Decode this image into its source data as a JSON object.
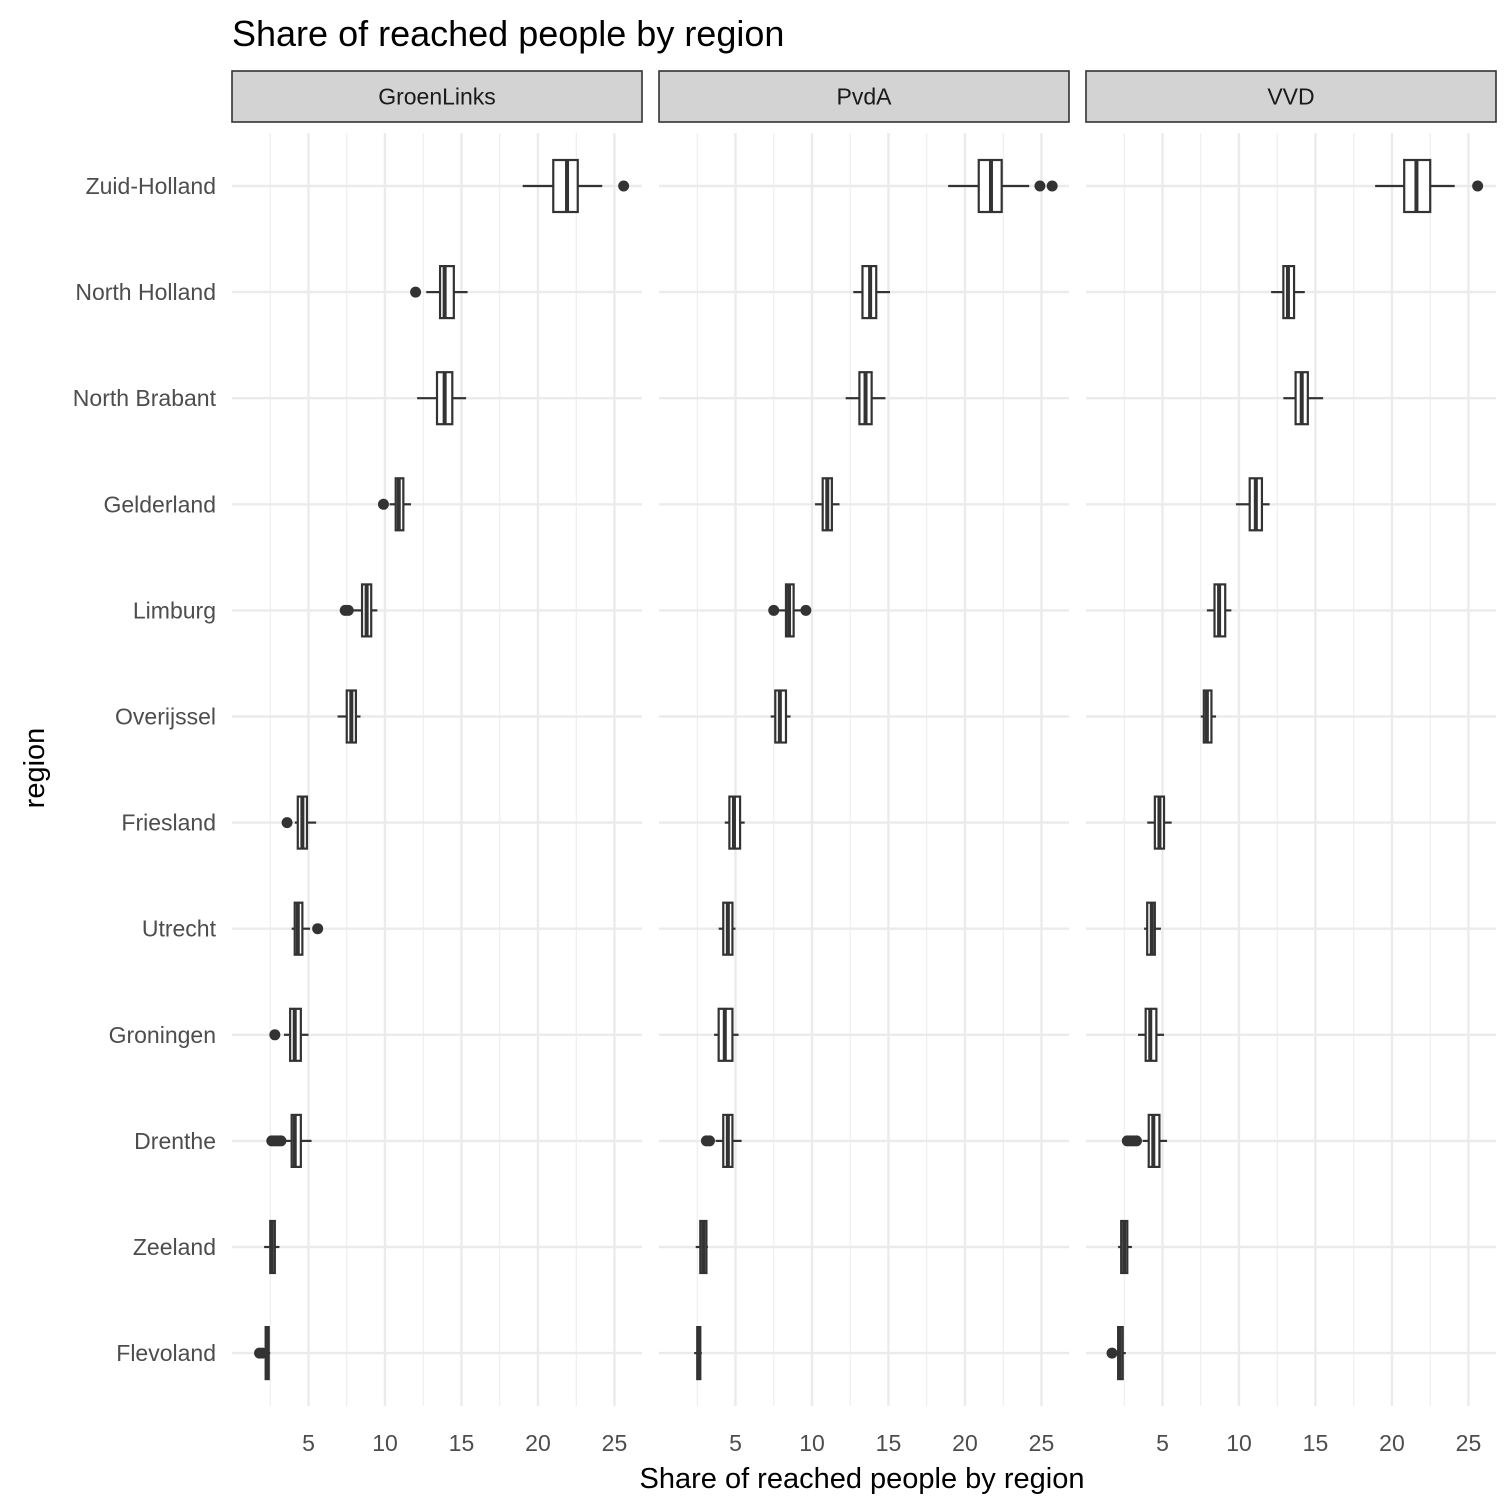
{
  "chart_data": {
    "type": "boxplot",
    "title": "Share of reached people by region",
    "xlabel": "Share of reached people by region",
    "ylabel": "region",
    "xlim": [
      0,
      26.8
    ],
    "xticks": [
      5,
      10,
      15,
      20,
      25
    ],
    "grid": "on",
    "categories": [
      "Zuid-Holland",
      "North Holland",
      "North Brabant",
      "Gelderland",
      "Limburg",
      "Overijssel",
      "Friesland",
      "Utrecht",
      "Groningen",
      "Drenthe",
      "Zeeland",
      "Flevoland"
    ],
    "facets": [
      {
        "name": "GroenLinks",
        "boxes": [
          {
            "region": "Zuid-Holland",
            "whisker_low": 19.0,
            "q1": 21.0,
            "median": 21.9,
            "q3": 22.6,
            "whisker_high": 24.2,
            "outliers": [
              25.6
            ]
          },
          {
            "region": "North Holland",
            "whisker_low": 12.7,
            "q1": 13.6,
            "median": 13.9,
            "q3": 14.5,
            "whisker_high": 15.4,
            "outliers": [
              12.0
            ]
          },
          {
            "region": "North Brabant",
            "whisker_low": 12.1,
            "q1": 13.4,
            "median": 13.9,
            "q3": 14.4,
            "whisker_high": 15.3,
            "outliers": []
          },
          {
            "region": "Gelderland",
            "whisker_low": 10.3,
            "q1": 10.7,
            "median": 10.9,
            "q3": 11.2,
            "whisker_high": 11.7,
            "outliers": [
              9.9
            ]
          },
          {
            "region": "Limburg",
            "whisker_low": 7.9,
            "q1": 8.5,
            "median": 8.8,
            "q3": 9.1,
            "whisker_high": 9.5,
            "outliers": [
              7.4,
              7.6
            ]
          },
          {
            "region": "Overijssel",
            "whisker_low": 6.9,
            "q1": 7.5,
            "median": 7.8,
            "q3": 8.1,
            "whisker_high": 8.4,
            "outliers": []
          },
          {
            "region": "Friesland",
            "whisker_low": 4.1,
            "q1": 4.3,
            "median": 4.6,
            "q3": 4.9,
            "whisker_high": 5.5,
            "outliers": [
              3.6
            ]
          },
          {
            "region": "Utrecht",
            "whisker_low": 3.9,
            "q1": 4.1,
            "median": 4.3,
            "q3": 4.6,
            "whisker_high": 5.1,
            "outliers": [
              5.6
            ]
          },
          {
            "region": "Groningen",
            "whisker_low": 3.4,
            "q1": 3.8,
            "median": 4.1,
            "q3": 4.5,
            "whisker_high": 5.0,
            "outliers": [
              2.8
            ]
          },
          {
            "region": "Drenthe",
            "whisker_low": 3.5,
            "q1": 3.9,
            "median": 4.1,
            "q3": 4.5,
            "whisker_high": 5.2,
            "outliers": [
              2.6,
              2.8,
              3.0,
              3.2
            ]
          },
          {
            "region": "Zeeland",
            "whisker_low": 2.1,
            "q1": 2.5,
            "median": 2.6,
            "q3": 2.8,
            "whisker_high": 3.1,
            "outliers": []
          },
          {
            "region": "Flevoland",
            "whisker_low": 1.9,
            "q1": 2.2,
            "median": 2.3,
            "q3": 2.4,
            "whisker_high": 2.5,
            "outliers": [
              1.8,
              2.0
            ]
          }
        ]
      },
      {
        "name": "PvdA",
        "boxes": [
          {
            "region": "Zuid-Holland",
            "whisker_low": 18.9,
            "q1": 20.9,
            "median": 21.7,
            "q3": 22.4,
            "whisker_high": 24.2,
            "outliers": [
              24.9,
              25.7
            ]
          },
          {
            "region": "North Holland",
            "whisker_low": 12.7,
            "q1": 13.3,
            "median": 13.8,
            "q3": 14.2,
            "whisker_high": 15.1,
            "outliers": []
          },
          {
            "region": "North Brabant",
            "whisker_low": 12.2,
            "q1": 13.1,
            "median": 13.5,
            "q3": 13.9,
            "whisker_high": 14.8,
            "outliers": []
          },
          {
            "region": "Gelderland",
            "whisker_low": 10.2,
            "q1": 10.7,
            "median": 11.0,
            "q3": 11.3,
            "whisker_high": 11.8,
            "outliers": []
          },
          {
            "region": "Limburg",
            "whisker_low": 7.8,
            "q1": 8.3,
            "median": 8.5,
            "q3": 8.8,
            "whisker_high": 9.3,
            "outliers": [
              7.5,
              9.6
            ]
          },
          {
            "region": "Overijssel",
            "whisker_low": 7.3,
            "q1": 7.6,
            "median": 7.9,
            "q3": 8.3,
            "whisker_high": 8.6,
            "outliers": []
          },
          {
            "region": "Friesland",
            "whisker_low": 4.3,
            "q1": 4.6,
            "median": 4.9,
            "q3": 5.3,
            "whisker_high": 5.6,
            "outliers": []
          },
          {
            "region": "Utrecht",
            "whisker_low": 3.9,
            "q1": 4.2,
            "median": 4.5,
            "q3": 4.8,
            "whisker_high": 5.0,
            "outliers": []
          },
          {
            "region": "Groningen",
            "whisker_low": 3.6,
            "q1": 3.9,
            "median": 4.3,
            "q3": 4.8,
            "whisker_high": 5.2,
            "outliers": []
          },
          {
            "region": "Drenthe",
            "whisker_low": 3.7,
            "q1": 4.2,
            "median": 4.5,
            "q3": 4.8,
            "whisker_high": 5.4,
            "outliers": [
              3.1,
              3.3
            ]
          },
          {
            "region": "Zeeland",
            "whisker_low": 2.4,
            "q1": 2.7,
            "median": 2.9,
            "q3": 3.1,
            "whisker_high": 3.2,
            "outliers": []
          },
          {
            "region": "Flevoland",
            "whisker_low": 2.3,
            "q1": 2.5,
            "median": 2.6,
            "q3": 2.7,
            "whisker_high": 2.8,
            "outliers": []
          }
        ]
      },
      {
        "name": "VVD",
        "boxes": [
          {
            "region": "Zuid-Holland",
            "whisker_low": 18.9,
            "q1": 20.8,
            "median": 21.6,
            "q3": 22.5,
            "whisker_high": 24.1,
            "outliers": [
              25.6
            ]
          },
          {
            "region": "North Holland",
            "whisker_low": 12.1,
            "q1": 12.9,
            "median": 13.2,
            "q3": 13.6,
            "whisker_high": 14.3,
            "outliers": []
          },
          {
            "region": "North Brabant",
            "whisker_low": 12.9,
            "q1": 13.7,
            "median": 14.1,
            "q3": 14.5,
            "whisker_high": 15.5,
            "outliers": []
          },
          {
            "region": "Gelderland",
            "whisker_low": 9.8,
            "q1": 10.7,
            "median": 11.1,
            "q3": 11.5,
            "whisker_high": 12.0,
            "outliers": []
          },
          {
            "region": "Limburg",
            "whisker_low": 7.9,
            "q1": 8.4,
            "median": 8.7,
            "q3": 9.1,
            "whisker_high": 9.5,
            "outliers": []
          },
          {
            "region": "Overijssel",
            "whisker_low": 7.5,
            "q1": 7.7,
            "median": 7.9,
            "q3": 8.2,
            "whisker_high": 8.5,
            "outliers": []
          },
          {
            "region": "Friesland",
            "whisker_low": 4.0,
            "q1": 4.5,
            "median": 4.8,
            "q3": 5.1,
            "whisker_high": 5.6,
            "outliers": []
          },
          {
            "region": "Utrecht",
            "whisker_low": 3.8,
            "q1": 4.0,
            "median": 4.3,
            "q3": 4.5,
            "whisker_high": 4.9,
            "outliers": []
          },
          {
            "region": "Groningen",
            "whisker_low": 3.4,
            "q1": 3.9,
            "median": 4.2,
            "q3": 4.6,
            "whisker_high": 5.1,
            "outliers": []
          },
          {
            "region": "Drenthe",
            "whisker_low": 3.7,
            "q1": 4.1,
            "median": 4.4,
            "q3": 4.8,
            "whisker_high": 5.3,
            "outliers": [
              2.7,
              2.9,
              3.1,
              3.3
            ]
          },
          {
            "region": "Zeeland",
            "whisker_low": 2.1,
            "q1": 2.3,
            "median": 2.5,
            "q3": 2.7,
            "whisker_high": 3.0,
            "outliers": []
          },
          {
            "region": "Flevoland",
            "whisker_low": 1.9,
            "q1": 2.1,
            "median": 2.2,
            "q3": 2.4,
            "whisker_high": 2.6,
            "outliers": [
              1.7
            ]
          }
        ]
      }
    ]
  }
}
